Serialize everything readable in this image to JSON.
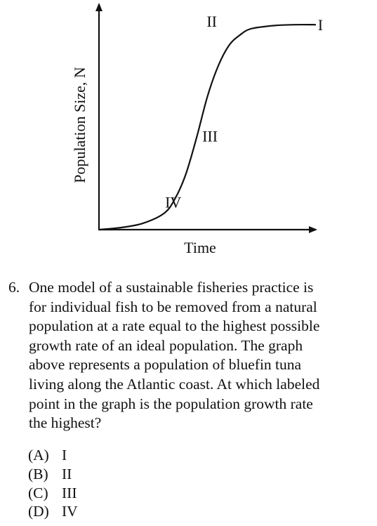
{
  "chart_data": {
    "type": "line",
    "xlabel": "Time",
    "ylabel": "Population Size, N",
    "grid": false,
    "legend": "none",
    "series": [
      {
        "x": [
          0,
          1,
          2,
          3,
          3.5,
          4,
          4.5,
          5,
          5.5,
          6,
          6.5,
          7,
          8,
          9,
          10
        ],
        "y": [
          0,
          1,
          3,
          8,
          15,
          27,
          45,
          65,
          80,
          90,
          95,
          98,
          99.5,
          100,
          100
        ]
      }
    ],
    "xlim": [
      0,
      10
    ],
    "ylim": [
      0,
      110
    ],
    "point_labels": [
      {
        "label": "I",
        "x": 9.7,
        "y": 100
      },
      {
        "label": "II",
        "x": 5.6,
        "y": 97
      },
      {
        "label": "III",
        "x": 4.5,
        "y": 45
      },
      {
        "label": "IV",
        "x": 3.0,
        "y": 8
      }
    ]
  },
  "question": {
    "number": "6.",
    "lines": [
      "One model of a sustainable fisheries practice is",
      "for individual fish to be removed from a natural",
      "population at a rate equal to the highest possible",
      "growth rate of an ideal population. The graph",
      "above represents a population of bluefin tuna",
      "living along the Atlantic coast. At which labeled",
      "point in the graph is the population growth rate",
      "the highest?"
    ]
  },
  "choices": [
    {
      "letter": "(A)",
      "text": "I"
    },
    {
      "letter": "(B)",
      "text": "II"
    },
    {
      "letter": "(C)",
      "text": "III"
    },
    {
      "letter": "(D)",
      "text": "IV"
    }
  ]
}
